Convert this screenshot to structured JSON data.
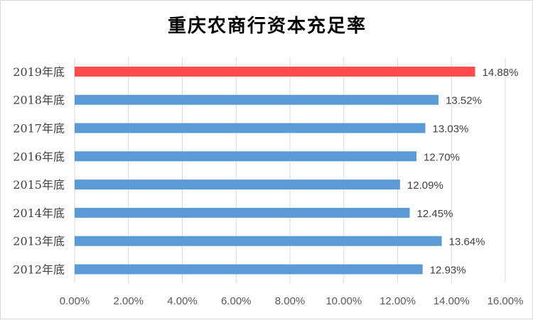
{
  "chart_data": {
    "type": "bar",
    "orientation": "horizontal",
    "title": "重庆农商行资本充足率",
    "categories": [
      "2019年底",
      "2018年底",
      "2017年底",
      "2016年底",
      "2015年底",
      "2014年底",
      "2013年底",
      "2012年底"
    ],
    "values": [
      14.88,
      13.52,
      13.03,
      12.7,
      12.09,
      12.45,
      13.64,
      12.93
    ],
    "value_labels": [
      "14.88%",
      "13.52%",
      "13.03%",
      "12.70%",
      "12.09%",
      "12.45%",
      "13.64%",
      "12.93%"
    ],
    "xlim": [
      0,
      16
    ],
    "x_ticks": [
      0,
      2,
      4,
      6,
      8,
      10,
      12,
      14,
      16
    ],
    "x_tick_labels": [
      "0.00%",
      "2.00%",
      "4.00%",
      "6.00%",
      "8.00%",
      "10.00%",
      "12.00%",
      "14.00%",
      "16.00%"
    ],
    "grid": "vertical",
    "legend": "none",
    "colors": {
      "default_bar": "#5b9bd5",
      "highlight_bar": "#ff4b4b",
      "highlight_category": "2019年底"
    }
  }
}
